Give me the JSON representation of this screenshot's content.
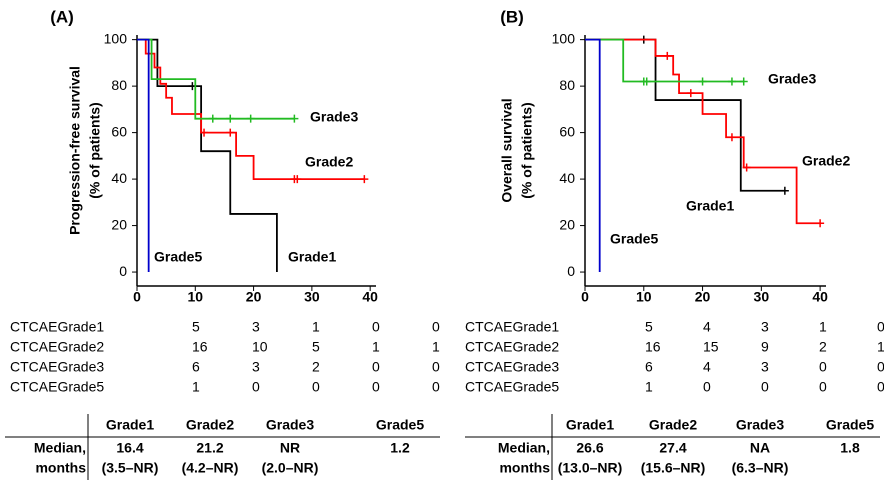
{
  "chart_data": [
    {
      "type": "step",
      "title": "(A)",
      "y_label": [
        "Progression-free survival",
        "(% of patients)"
      ],
      "xlim": [
        0,
        41
      ],
      "ylim": [
        -6,
        102
      ],
      "xticks": [
        0,
        10,
        20,
        30,
        40
      ],
      "yticks": [
        0,
        20,
        40,
        60,
        80,
        100
      ],
      "series": [
        {
          "name": "Grade1",
          "color": "#000000",
          "x": [
            0,
            3.5,
            11,
            16,
            24
          ],
          "values": [
            100,
            80,
            52,
            25,
            0
          ],
          "censor_x": [
            9.5
          ],
          "censor_y": [
            80
          ]
        },
        {
          "name": "Grade2",
          "color": "#ff0000",
          "x": [
            0,
            1.5,
            3,
            4,
            5,
            6,
            11,
            17,
            20,
            39
          ],
          "values": [
            100,
            94,
            88,
            81,
            75,
            68,
            60,
            50,
            40,
            40
          ],
          "censor_x": [
            11.5,
            16,
            27,
            27.5,
            39
          ],
          "censor_y": [
            60,
            60,
            40,
            40,
            40
          ]
        },
        {
          "name": "Grade3",
          "color": "#22bb22",
          "x": [
            0,
            2.5,
            10,
            27
          ],
          "values": [
            100,
            83,
            66,
            66
          ],
          "censor_x": [
            13,
            16,
            19.5,
            27
          ],
          "censor_y": [
            66,
            66,
            66,
            66
          ]
        },
        {
          "name": "Grade5",
          "color": "#0000cc",
          "x": [
            0,
            2,
            2
          ],
          "values": [
            100,
            100,
            0
          ],
          "censor_x": [],
          "censor_y": []
        }
      ],
      "at_risk": [
        {
          "name": "CTCAEGrade1",
          "values": [
            5,
            3,
            1,
            0,
            0
          ]
        },
        {
          "name": "CTCAEGrade2",
          "values": [
            16,
            10,
            5,
            1,
            1
          ]
        },
        {
          "name": "CTCAEGrade3",
          "values": [
            6,
            3,
            2,
            0,
            0
          ]
        },
        {
          "name": "CTCAEGrade5",
          "values": [
            1,
            0,
            0,
            0,
            0
          ]
        }
      ],
      "median_table": {
        "columns": [
          "Grade1",
          "Grade2",
          "Grade3",
          "Grade5"
        ],
        "row_label": [
          "Median,",
          "months"
        ],
        "median": [
          16.4,
          21.2,
          "NR",
          1.2
        ],
        "ci": [
          "(3.5–NR)",
          "(4.2–NR)",
          "(2.0–NR)"
        ]
      }
    },
    {
      "type": "step",
      "title": "(B)",
      "y_label": [
        "Overall survival",
        "(% of patients)"
      ],
      "xlim": [
        0,
        41
      ],
      "ylim": [
        -6,
        102
      ],
      "xticks": [
        0,
        10,
        20,
        30,
        40
      ],
      "yticks": [
        0,
        20,
        40,
        60,
        80,
        100
      ],
      "series": [
        {
          "name": "Grade1",
          "color": "#000000",
          "x": [
            0,
            12,
            26.5,
            34
          ],
          "values": [
            100,
            74,
            35,
            35
          ],
          "censor_x": [
            10,
            34
          ],
          "censor_y": [
            100,
            35
          ]
        },
        {
          "name": "Grade2",
          "color": "#ff0000",
          "x": [
            0,
            12,
            15,
            16,
            20,
            24,
            27,
            36,
            40
          ],
          "values": [
            100,
            93,
            85,
            77,
            68,
            58,
            45,
            21,
            21
          ],
          "censor_x": [
            14,
            18,
            25,
            27.5,
            40
          ],
          "censor_y": [
            93,
            77,
            58,
            45,
            21
          ]
        },
        {
          "name": "Grade3",
          "color": "#22bb22",
          "x": [
            0,
            6.5,
            27
          ],
          "values": [
            100,
            82,
            82
          ],
          "censor_x": [
            10,
            10.5,
            20,
            25,
            27
          ],
          "censor_y": [
            82,
            82,
            82,
            82,
            82
          ]
        },
        {
          "name": "Grade5",
          "color": "#0000cc",
          "x": [
            0,
            2.5,
            2.5
          ],
          "values": [
            100,
            100,
            0
          ],
          "censor_x": [],
          "censor_y": []
        }
      ],
      "at_risk": [
        {
          "name": "CTCAEGrade1",
          "values": [
            5,
            4,
            3,
            1,
            0
          ]
        },
        {
          "name": "CTCAEGrade2",
          "values": [
            16,
            15,
            9,
            2,
            1
          ]
        },
        {
          "name": "CTCAEGrade3",
          "values": [
            6,
            4,
            3,
            0,
            0
          ]
        },
        {
          "name": "CTCAEGrade5",
          "values": [
            1,
            0,
            0,
            0,
            0
          ]
        }
      ],
      "median_table": {
        "columns": [
          "Grade1",
          "Grade2",
          "Grade3",
          "Grade5"
        ],
        "row_label": [
          "Median,",
          "months"
        ],
        "median": [
          26.6,
          27.4,
          "NA",
          1.8
        ],
        "ci": [
          "(13.0–NR)",
          "(15.6–NR)",
          "(6.3–NR)"
        ]
      }
    }
  ]
}
